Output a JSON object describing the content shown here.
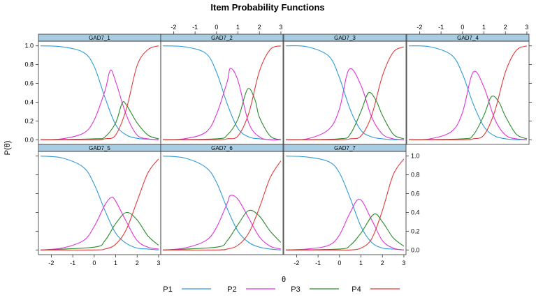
{
  "chart_data": {
    "type": "line",
    "title": "Item Probability Functions",
    "xlabel": "θ",
    "ylabel": "P(θ)",
    "xlim": [
      -2.6,
      3.1
    ],
    "ylim": [
      -0.05,
      1.05
    ],
    "x_ticks": [
      "-2",
      "-1",
      "0",
      "1",
      "2",
      "3"
    ],
    "y_ticks": [
      "0.0",
      "0.2",
      "0.4",
      "0.6",
      "0.8",
      "1.0"
    ],
    "colors": {
      "P1": "#2e9bd6",
      "P2": "#e033d6",
      "P3": "#2a8a2a",
      "P4": "#e03a3a",
      "strip": "#a8cde2"
    },
    "legend": {
      "placement": "bottom",
      "entries": [
        "P1",
        "P2",
        "P3",
        "P4"
      ]
    },
    "grid": false,
    "panels": [
      {
        "name": "GAD7_1",
        "series": [
          {
            "name": "P1",
            "x": [
              -2.5,
              -1.5,
              -0.5,
              0,
              0.5,
              1,
              1.5,
              2,
              2.5,
              3
            ],
            "values": [
              1.0,
              0.99,
              0.93,
              0.78,
              0.45,
              0.16,
              0.05,
              0.015,
              0.005,
              0.0
            ]
          },
          {
            "name": "P2",
            "x": [
              -2.5,
              -1.5,
              -0.5,
              0,
              0.5,
              0.75,
              1,
              1.5,
              2,
              2.5,
              3
            ],
            "values": [
              0.0,
              0.01,
              0.07,
              0.21,
              0.52,
              0.74,
              0.62,
              0.26,
              0.05,
              0.01,
              0.0
            ]
          },
          {
            "name": "P3",
            "x": [
              -2.5,
              0,
              0.5,
              1,
              1.3,
              1.5,
              2,
              2.5,
              3
            ],
            "values": [
              0.0,
              0.01,
              0.03,
              0.18,
              0.39,
              0.37,
              0.18,
              0.05,
              0.01
            ]
          },
          {
            "name": "P4",
            "x": [
              -2.5,
              0,
              0.5,
              1,
              1.5,
              2,
              2.5,
              3
            ],
            "values": [
              0.0,
              0.0,
              0.01,
              0.05,
              0.33,
              0.79,
              0.96,
              1.0
            ]
          }
        ]
      },
      {
        "name": "GAD7_2",
        "series": [
          {
            "name": "P1",
            "x": [
              -2.5,
              -1.5,
              -0.5,
              0,
              0.5,
              1,
              1.5,
              2,
              2.5,
              3
            ],
            "values": [
              1.0,
              0.99,
              0.92,
              0.72,
              0.38,
              0.12,
              0.03,
              0.01,
              0.0,
              0.0
            ]
          },
          {
            "name": "P2",
            "x": [
              -2.5,
              -1.5,
              -0.5,
              0,
              0.5,
              0.65,
              1,
              1.5,
              2,
              2.5,
              3
            ],
            "values": [
              0.0,
              0.01,
              0.08,
              0.27,
              0.62,
              0.76,
              0.63,
              0.18,
              0.03,
              0.0,
              0.0
            ]
          },
          {
            "name": "P3",
            "x": [
              -2.5,
              0,
              0.5,
              1,
              1.45,
              1.8,
              2,
              2.5,
              3
            ],
            "values": [
              0.0,
              0.01,
              0.05,
              0.22,
              0.54,
              0.42,
              0.24,
              0.04,
              0.0
            ]
          },
          {
            "name": "P4",
            "x": [
              -2.5,
              0,
              0.5,
              1,
              1.5,
              2,
              2.5,
              3
            ],
            "values": [
              0.0,
              0.0,
              0.01,
              0.04,
              0.28,
              0.73,
              0.96,
              1.0
            ]
          }
        ]
      },
      {
        "name": "GAD7_3",
        "series": [
          {
            "name": "P1",
            "x": [
              -2.5,
              -1.5,
              -0.5,
              0,
              0.5,
              1,
              1.5,
              2,
              2.5,
              3
            ],
            "values": [
              1.0,
              0.99,
              0.89,
              0.66,
              0.32,
              0.1,
              0.03,
              0.01,
              0.0,
              0.0
            ]
          },
          {
            "name": "P2",
            "x": [
              -2.5,
              -1.5,
              -0.5,
              0,
              0.45,
              1,
              1.5,
              2,
              2.5,
              3
            ],
            "values": [
              0.0,
              0.01,
              0.11,
              0.33,
              0.75,
              0.58,
              0.24,
              0.06,
              0.01,
              0.0
            ]
          },
          {
            "name": "P3",
            "x": [
              -2.5,
              0,
              0.5,
              1,
              1.35,
              1.7,
              2,
              2.5,
              3
            ],
            "values": [
              0.0,
              0.01,
              0.06,
              0.3,
              0.5,
              0.42,
              0.26,
              0.06,
              0.01
            ]
          },
          {
            "name": "P4",
            "x": [
              -2.5,
              0,
              0.5,
              1,
              1.5,
              2,
              2.5,
              3
            ],
            "values": [
              0.0,
              0.0,
              0.01,
              0.04,
              0.26,
              0.68,
              0.93,
              0.99
            ]
          }
        ]
      },
      {
        "name": "GAD7_4",
        "series": [
          {
            "name": "P1",
            "x": [
              -2.5,
              -1.5,
              -0.5,
              0,
              0.5,
              1,
              1.5,
              2,
              2.5,
              3
            ],
            "values": [
              1.0,
              0.99,
              0.9,
              0.7,
              0.38,
              0.14,
              0.04,
              0.01,
              0.0,
              0.0
            ]
          },
          {
            "name": "P2",
            "x": [
              -2.5,
              -1.5,
              -0.5,
              0,
              0.5,
              1,
              1.5,
              2,
              2.5,
              3
            ],
            "values": [
              0.0,
              0.01,
              0.09,
              0.29,
              0.72,
              0.56,
              0.22,
              0.05,
              0.01,
              0.0
            ]
          },
          {
            "name": "P3",
            "x": [
              -2.5,
              0,
              0.5,
              1,
              1.35,
              1.7,
              2,
              2.5,
              3
            ],
            "values": [
              0.0,
              0.01,
              0.05,
              0.26,
              0.46,
              0.4,
              0.25,
              0.06,
              0.01
            ]
          },
          {
            "name": "P4",
            "x": [
              -2.5,
              0,
              0.5,
              1,
              1.5,
              2,
              2.5,
              3
            ],
            "values": [
              0.0,
              0.0,
              0.01,
              0.05,
              0.3,
              0.72,
              0.95,
              1.0
            ]
          }
        ]
      },
      {
        "name": "GAD7_5",
        "series": [
          {
            "name": "P1",
            "x": [
              -2.5,
              -1.5,
              -0.5,
              0,
              0.5,
              1,
              1.5,
              2,
              2.5,
              3
            ],
            "values": [
              1.0,
              0.98,
              0.88,
              0.7,
              0.42,
              0.18,
              0.07,
              0.02,
              0.01,
              0.0
            ]
          },
          {
            "name": "P2",
            "x": [
              -2.5,
              -1.5,
              -0.5,
              0,
              0.5,
              0.8,
              1,
              1.5,
              2,
              2.5,
              3
            ],
            "values": [
              0.0,
              0.02,
              0.1,
              0.25,
              0.48,
              0.56,
              0.52,
              0.3,
              0.1,
              0.03,
              0.01
            ]
          },
          {
            "name": "P3",
            "x": [
              -2.5,
              0,
              0.5,
              1,
              1.5,
              2,
              2.5,
              3
            ],
            "values": [
              0.0,
              0.03,
              0.1,
              0.28,
              0.4,
              0.32,
              0.15,
              0.05
            ]
          },
          {
            "name": "P4",
            "x": [
              -2.5,
              0,
              0.5,
              1,
              1.5,
              2,
              2.5,
              3
            ],
            "values": [
              0.0,
              0.0,
              0.01,
              0.06,
              0.22,
              0.52,
              0.82,
              0.97
            ]
          }
        ]
      },
      {
        "name": "GAD7_6",
        "series": [
          {
            "name": "P1",
            "x": [
              -2.5,
              -1.5,
              -0.5,
              0,
              0.5,
              1,
              1.5,
              2,
              2.5,
              3
            ],
            "values": [
              1.0,
              0.98,
              0.88,
              0.72,
              0.44,
              0.2,
              0.08,
              0.03,
              0.01,
              0.0
            ]
          },
          {
            "name": "P2",
            "x": [
              -2.5,
              -1.5,
              -0.5,
              0,
              0.5,
              0.65,
              1,
              1.5,
              2,
              2.5,
              3
            ],
            "values": [
              0.0,
              0.02,
              0.1,
              0.24,
              0.5,
              0.58,
              0.54,
              0.34,
              0.14,
              0.04,
              0.01
            ]
          },
          {
            "name": "P3",
            "x": [
              -2.5,
              0,
              0.5,
              1,
              1.5,
              2,
              2.5,
              3
            ],
            "values": [
              0.0,
              0.03,
              0.1,
              0.27,
              0.42,
              0.36,
              0.2,
              0.08
            ]
          },
          {
            "name": "P4",
            "x": [
              -2.5,
              0,
              0.5,
              1,
              1.5,
              2,
              2.5,
              3
            ],
            "values": [
              0.0,
              0.0,
              0.01,
              0.05,
              0.18,
              0.45,
              0.77,
              0.95
            ]
          }
        ]
      },
      {
        "name": "GAD7_7",
        "series": [
          {
            "name": "P1",
            "x": [
              -2.5,
              -1.5,
              -0.5,
              0,
              0.5,
              1,
              1.5,
              2,
              2.5,
              3
            ],
            "values": [
              1.0,
              0.99,
              0.94,
              0.82,
              0.55,
              0.25,
              0.08,
              0.02,
              0.01,
              0.0
            ]
          },
          {
            "name": "P2",
            "x": [
              -2.5,
              -1.5,
              -0.5,
              0,
              0.5,
              0.95,
              1.5,
              2,
              2.5,
              3
            ],
            "values": [
              0.0,
              0.01,
              0.05,
              0.16,
              0.4,
              0.54,
              0.32,
              0.1,
              0.02,
              0.0
            ]
          },
          {
            "name": "P3",
            "x": [
              -2.5,
              0,
              0.5,
              1,
              1.6,
              2,
              2.5,
              3
            ],
            "values": [
              0.0,
              0.01,
              0.05,
              0.18,
              0.38,
              0.3,
              0.13,
              0.04
            ]
          },
          {
            "name": "P4",
            "x": [
              -2.5,
              0,
              0.5,
              1,
              1.5,
              2,
              2.5,
              3
            ],
            "values": [
              0.0,
              0.0,
              0.0,
              0.02,
              0.12,
              0.42,
              0.8,
              0.97
            ]
          }
        ]
      }
    ]
  }
}
